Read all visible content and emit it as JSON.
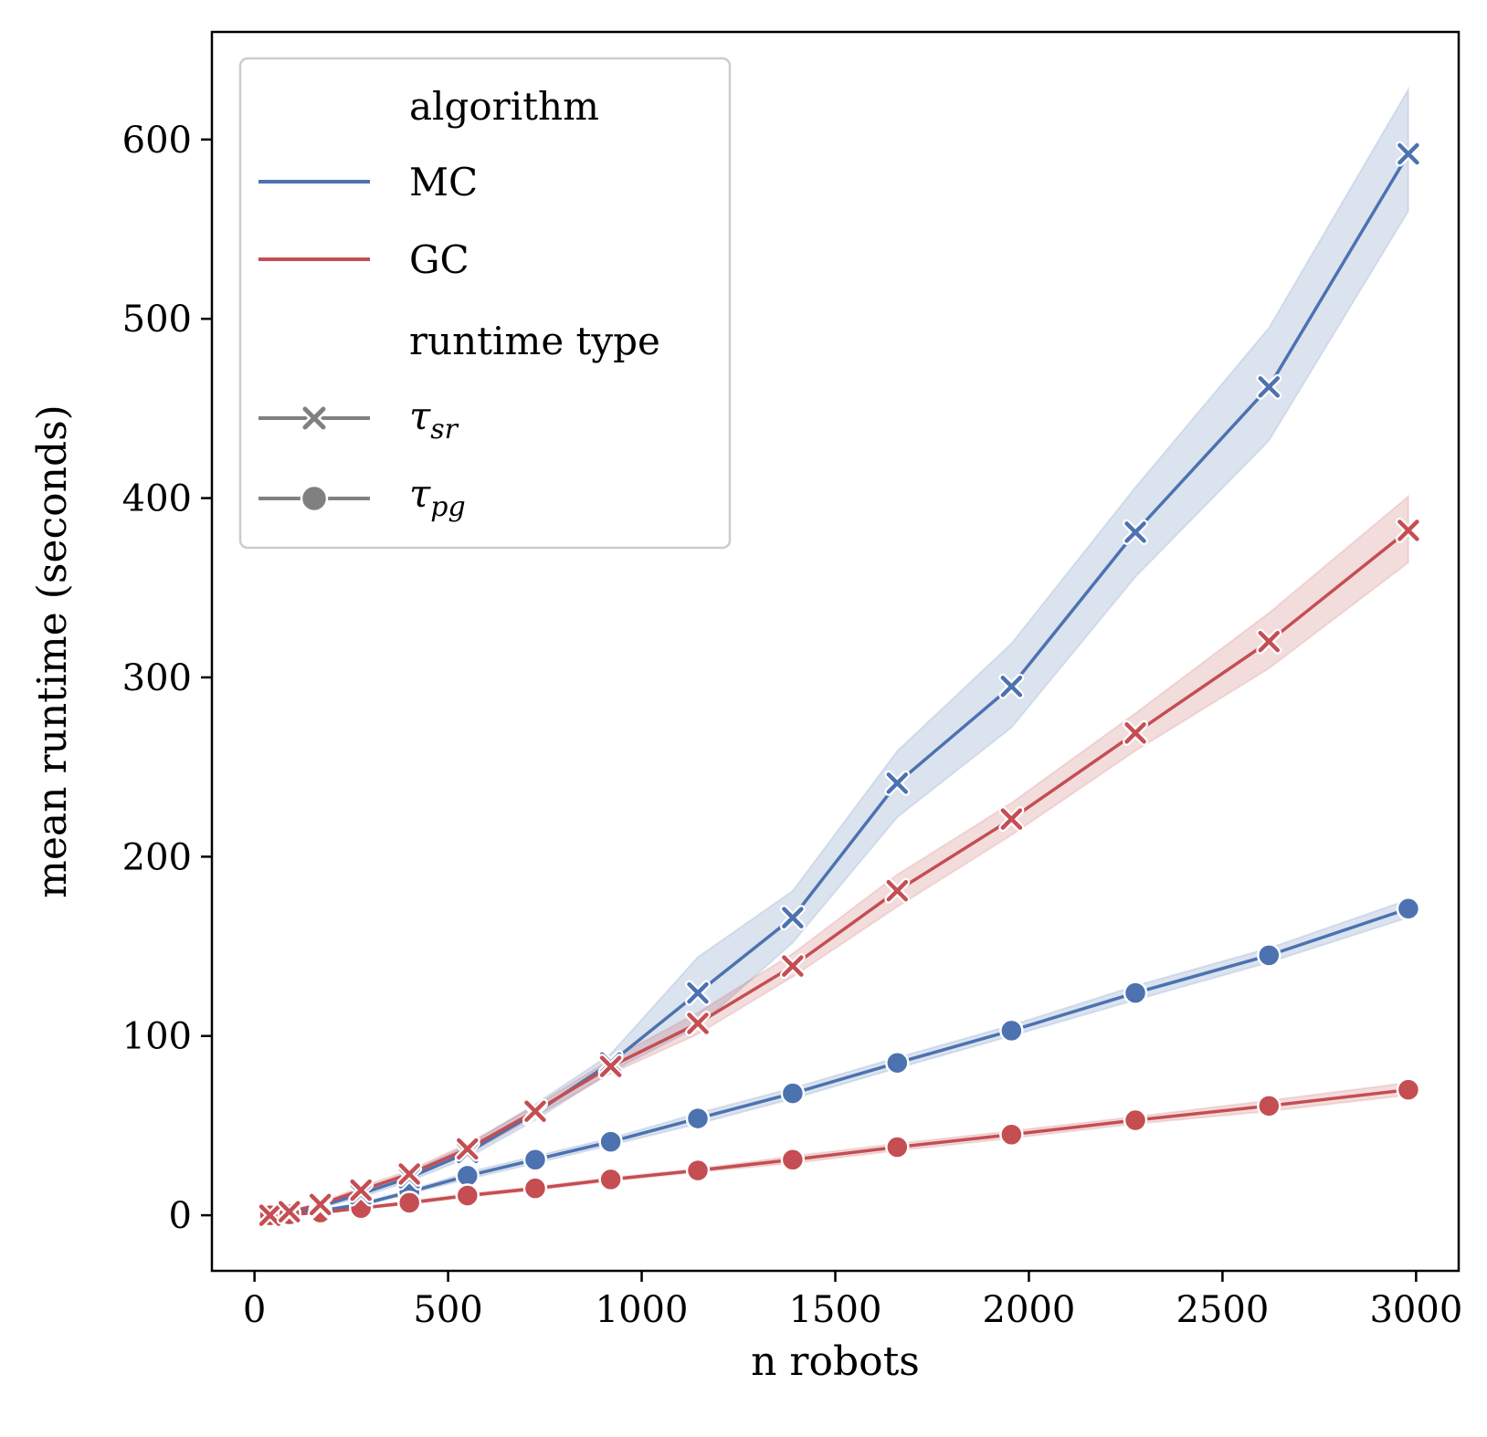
{
  "chart_data": {
    "type": "line",
    "title": "",
    "xlabel": "n robots",
    "ylabel": "mean runtime (seconds)",
    "xlim": [
      -110,
      3110
    ],
    "ylim": [
      -31,
      660
    ],
    "x_ticks": [
      0,
      500,
      1000,
      1500,
      2000,
      2500,
      3000
    ],
    "y_ticks": [
      0,
      100,
      200,
      300,
      400,
      500,
      600
    ],
    "legend": {
      "position": "top-left",
      "algorithm_title": "algorithm",
      "runtime_title": "runtime type",
      "algorithms": [
        {
          "name": "MC",
          "color": "#4c72b0"
        },
        {
          "name": "GC",
          "color": "#c44e52"
        }
      ],
      "runtime_types": [
        {
          "symbol": "τ",
          "sub": "sr",
          "marker": "x"
        },
        {
          "symbol": "τ",
          "sub": "pg",
          "marker": "o"
        }
      ]
    },
    "x": [
      40,
      90,
      170,
      275,
      400,
      550,
      725,
      920,
      1145,
      1390,
      1660,
      1955,
      2275,
      2620,
      2980
    ],
    "series": [
      {
        "name": "MC τsr",
        "algorithm": "MC",
        "runtime": "sr",
        "marker": "x",
        "color": "#4c72b0",
        "values": [
          0,
          1.5,
          5,
          12,
          21,
          35,
          57,
          85,
          124,
          166,
          241,
          295,
          381,
          462,
          592
        ],
        "ci_lower": [
          0,
          1,
          4,
          10,
          19,
          32,
          53,
          80,
          105,
          152,
          222,
          272,
          356,
          432,
          560
        ],
        "ci_upper": [
          1,
          2.5,
          6,
          14,
          24,
          39,
          62,
          90,
          144,
          181,
          259,
          319,
          406,
          495,
          628
        ]
      },
      {
        "name": "GC τsr",
        "algorithm": "GC",
        "runtime": "sr",
        "marker": "x",
        "color": "#c44e52",
        "values": [
          0,
          2,
          6,
          14,
          23,
          37,
          58,
          83,
          107,
          139,
          181,
          221,
          269,
          320,
          382
        ],
        "ci_lower": [
          0,
          1.5,
          5,
          12,
          21,
          34,
          55,
          79,
          101,
          133,
          172,
          212,
          259,
          305,
          364
        ],
        "ci_upper": [
          1,
          2.5,
          7,
          16,
          25,
          40,
          61,
          87,
          113,
          146,
          190,
          230,
          280,
          336,
          401
        ]
      },
      {
        "name": "MC τpg",
        "algorithm": "MC",
        "runtime": "pg",
        "marker": "o",
        "color": "#4c72b0",
        "values": [
          0,
          1,
          2.5,
          6,
          13,
          22,
          31,
          41,
          54,
          68,
          85,
          103,
          124,
          145,
          171
        ],
        "ci_lower": [
          0,
          0.5,
          2,
          5,
          12,
          20,
          29,
          39,
          51,
          65,
          82,
          100,
          120,
          141,
          166
        ],
        "ci_upper": [
          0.5,
          1.5,
          3,
          7,
          14,
          24,
          33,
          43,
          57,
          71,
          88,
          106,
          128,
          149,
          176
        ]
      },
      {
        "name": "GC τpg",
        "algorithm": "GC",
        "runtime": "pg",
        "marker": "o",
        "color": "#c44e52",
        "values": [
          0,
          0.5,
          1.5,
          4,
          7,
          11,
          15,
          20,
          25,
          31,
          38,
          45,
          53,
          61,
          70
        ],
        "ci_lower": [
          0,
          0.3,
          1,
          3.5,
          6,
          10,
          14,
          19,
          24,
          29,
          36,
          43,
          51,
          58,
          67
        ],
        "ci_upper": [
          0.3,
          0.7,
          2,
          4.5,
          8,
          12,
          16,
          21,
          26,
          33,
          40,
          47,
          55,
          64,
          74
        ]
      }
    ]
  }
}
